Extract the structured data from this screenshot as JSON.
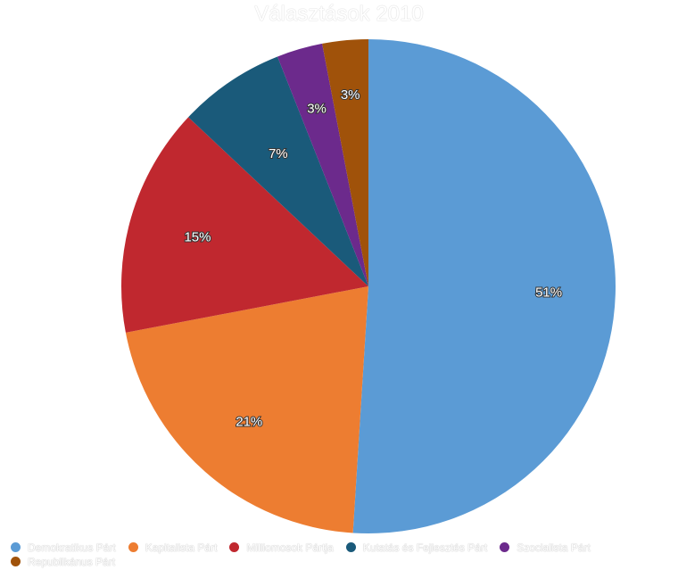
{
  "chart_data": {
    "type": "pie",
    "title": "Választások 2010",
    "categories": [
      "Demokratikus Párt",
      "Kapitalista Párt",
      "Milliomosok Pártja",
      "Kutatás és Fejlesztés Párt",
      "Szocialista Párt",
      "Republikánus Párt"
    ],
    "values": [
      51,
      21,
      15,
      7,
      3,
      3
    ],
    "labels": [
      "51%",
      "21%",
      "15%",
      "7%",
      "3%",
      "3%"
    ],
    "colors": [
      "#5b9bd5",
      "#ed7d31",
      "#c0282f",
      "#1a5a7a",
      "#6c2a8c",
      "#a0520a"
    ],
    "legend": "bottom"
  }
}
